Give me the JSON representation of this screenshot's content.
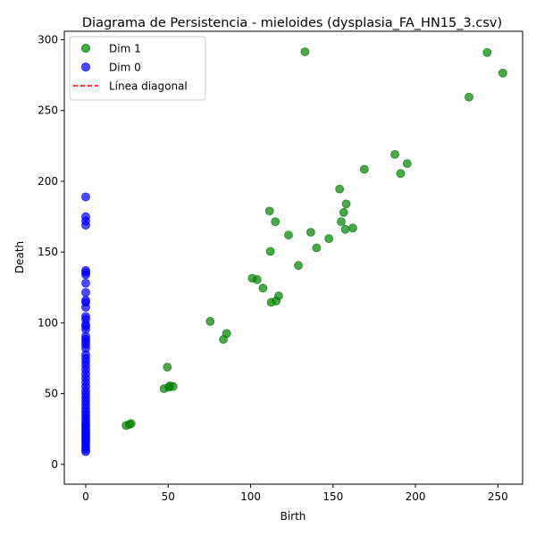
{
  "chart_data": {
    "type": "scatter",
    "title": "Diagrama de Persistencia - mieloides (dysplasia_FA_HN15_3.csv)",
    "xlabel": "Birth",
    "ylabel": "Death",
    "xlim": [
      -13,
      265
    ],
    "ylim": [
      -14,
      306
    ],
    "xticks": [
      0,
      50,
      100,
      150,
      200,
      250
    ],
    "yticks": [
      0,
      50,
      100,
      150,
      200,
      250,
      300
    ],
    "grid": false,
    "legend_position": "top-left",
    "series": [
      {
        "name": "Dim 1",
        "color": "#008000",
        "marker": "circle",
        "points": [
          [
            24.5,
            27.5
          ],
          [
            26.5,
            28.2
          ],
          [
            27.5,
            28.8
          ],
          [
            47.5,
            53.5
          ],
          [
            50.5,
            54.5
          ],
          [
            51,
            55.5
          ],
          [
            53,
            55
          ],
          [
            49.5,
            68.7
          ],
          [
            75.5,
            101
          ],
          [
            83.5,
            88.3
          ],
          [
            85.5,
            92.5
          ],
          [
            101,
            131.5
          ],
          [
            104,
            130.5
          ],
          [
            107.5,
            124.5
          ],
          [
            111.5,
            179
          ],
          [
            112,
            150.5
          ],
          [
            112.5,
            114.5
          ],
          [
            115,
            171.5
          ],
          [
            115.5,
            115.5
          ],
          [
            117,
            119
          ],
          [
            123,
            162
          ],
          [
            129,
            140.5
          ],
          [
            133,
            291.5
          ],
          [
            136.5,
            164
          ],
          [
            140,
            153
          ],
          [
            147.5,
            159.5
          ],
          [
            154,
            194.5
          ],
          [
            155,
            171.5
          ],
          [
            156.5,
            178
          ],
          [
            157.5,
            166
          ],
          [
            158,
            184
          ],
          [
            162,
            167
          ],
          [
            169,
            208.5
          ],
          [
            187.5,
            219
          ],
          [
            191,
            205.5
          ],
          [
            195,
            212.5
          ],
          [
            232.5,
            259.5
          ],
          [
            243.5,
            291
          ],
          [
            253,
            276.5
          ]
        ]
      },
      {
        "name": "Dim 0",
        "color": "#0000ff",
        "marker": "circle",
        "points": [
          [
            0,
            9
          ],
          [
            0,
            10.5
          ],
          [
            0,
            12
          ],
          [
            0,
            14
          ],
          [
            0,
            15.5
          ],
          [
            0,
            17
          ],
          [
            0,
            18.5
          ],
          [
            0,
            20
          ],
          [
            0,
            21.5
          ],
          [
            0,
            23
          ],
          [
            0,
            24.5
          ],
          [
            0,
            26
          ],
          [
            0,
            27.5
          ],
          [
            0,
            29
          ],
          [
            0,
            31
          ],
          [
            0,
            33
          ],
          [
            0,
            35
          ],
          [
            0,
            37
          ],
          [
            0,
            39.5
          ],
          [
            0,
            42
          ],
          [
            0,
            44.5
          ],
          [
            0,
            47
          ],
          [
            0,
            49.5
          ],
          [
            0,
            52
          ],
          [
            0,
            55
          ],
          [
            0,
            58
          ],
          [
            0,
            61
          ],
          [
            0,
            64
          ],
          [
            0,
            67
          ],
          [
            0,
            70
          ],
          [
            0,
            72.5
          ],
          [
            0,
            75
          ],
          [
            0,
            77.5
          ],
          [
            0,
            82
          ],
          [
            0,
            84.5
          ],
          [
            0,
            86.5
          ],
          [
            0,
            88.5
          ],
          [
            0,
            90.5
          ],
          [
            0,
            95.5
          ],
          [
            0,
            97.5
          ],
          [
            0,
            99
          ],
          [
            0,
            102.5
          ],
          [
            0,
            104.5
          ],
          [
            0,
            111
          ],
          [
            0,
            114.5
          ],
          [
            0,
            116
          ],
          [
            0,
            121.5
          ],
          [
            0,
            128
          ],
          [
            0,
            134
          ],
          [
            0,
            135.5
          ],
          [
            0,
            137
          ],
          [
            0,
            169
          ],
          [
            0,
            172
          ],
          [
            0,
            175
          ],
          [
            0,
            189
          ]
        ]
      },
      {
        "name": "Línea diagonal",
        "color": "#ff0000",
        "line_style": "dashed",
        "points": []
      }
    ]
  }
}
